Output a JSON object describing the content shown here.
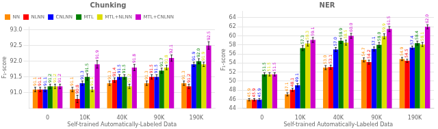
{
  "chart_data": [
    {
      "type": "bar",
      "title": "Chunking",
      "xlabel": "Self-trained Automatically-Labeled Data",
      "ylabel": "F₁-score",
      "categories": [
        "0",
        "10K",
        "40K",
        "90K",
        "190K"
      ],
      "series": [
        {
          "name": "NN",
          "color": "#FF8C00",
          "values": [
            91.1,
            91.1,
            91.3,
            91.3,
            91.3
          ],
          "errors": [
            0.07,
            0.07,
            0.07,
            0.07,
            0.07
          ],
          "value_labels": [
            "91.1",
            "91.1",
            "91.3",
            "91.3",
            "91.3"
          ]
        },
        {
          "name": "NLNN",
          "color": "#FF0000",
          "values": [
            91.1,
            90.8,
            91.4,
            91.5,
            91.2
          ],
          "errors": [
            0.07,
            0.12,
            0.07,
            0.07,
            0.07
          ],
          "value_labels": [
            "91.1",
            "90.8",
            "91.4",
            "91.5",
            "91.2"
          ]
        },
        {
          "name": "CNLNN",
          "color": "#0000FF",
          "values": [
            91.1,
            91.3,
            91.5,
            91.5,
            91.9
          ],
          "errors": [
            0.07,
            0.07,
            0.07,
            0.07,
            0.07
          ],
          "value_labels": [
            "91.1",
            "91.3",
            "91.5",
            "91.5",
            "91.9"
          ]
        },
        {
          "name": "MTL",
          "color": "#008000",
          "values": [
            91.2,
            91.5,
            91.5,
            91.7,
            92.0
          ],
          "errors": [
            0.07,
            0.1,
            0.07,
            0.08,
            0.08
          ],
          "value_labels": [
            "91.2",
            "91.5",
            "91.5",
            "91.7",
            "92.0"
          ]
        },
        {
          "name": "MTL+NLNN",
          "color": "#DDDD00",
          "values": [
            91.2,
            91.1,
            91.2,
            91.8,
            91.9
          ],
          "errors": [
            0.07,
            0.07,
            0.07,
            0.07,
            0.07
          ],
          "value_labels": [
            "91.2",
            "91.1",
            "91.2",
            "91.8",
            "91.9"
          ]
        },
        {
          "name": "MTL+CNLNN",
          "color": "#CC00CC",
          "values": [
            91.2,
            91.9,
            91.8,
            92.1,
            92.5
          ],
          "errors": [
            0.07,
            0.12,
            0.1,
            0.1,
            0.12
          ],
          "value_labels": [
            "91.2",
            "91.9",
            "91.8",
            "92.1",
            "92.5"
          ]
        }
      ],
      "ylim": [
        90.5,
        93.1
      ],
      "yticks": [
        {
          "value": 91.0,
          "label": "91.0"
        },
        91.5,
        {
          "value": 92.0,
          "label": "92.0"
        },
        92.5,
        {
          "value": 93.0,
          "label": "93.0"
        }
      ],
      "grid": true,
      "data_labels": true,
      "legend": "upper left"
    },
    {
      "type": "bar",
      "title": "NER",
      "xlabel": "Self-trained Automatically-Labeled Data",
      "ylabel": "F₁-score",
      "categories": [
        "0",
        "10K",
        "40K",
        "90K",
        "190K"
      ],
      "series": [
        {
          "name": "NN",
          "color": "#FF8C00",
          "values": [
            45.9,
            47.1,
            53.0,
            54.7,
            54.9
          ],
          "errors": [
            0.25,
            0.35,
            0.45,
            0.45,
            0.35
          ],
          "value_labels": [
            "45.9",
            "47.1",
            "53.0",
            "54.7",
            "54.9"
          ]
        },
        {
          "name": "NLNN",
          "color": "#FF0000",
          "values": [
            45.9,
            48.1,
            53.1,
            54.2,
            54.5
          ],
          "errors": [
            0.25,
            0.35,
            0.45,
            0.45,
            0.35
          ],
          "value_labels": [
            "45.9",
            "48.1",
            "53.1",
            "54.2",
            "54.5"
          ]
        },
        {
          "name": "CNLNN",
          "color": "#0000FF",
          "values": [
            45.9,
            49.1,
            57.0,
            57.1,
            57.4
          ],
          "errors": [
            0.25,
            0.35,
            0.45,
            0.45,
            0.35
          ],
          "value_labels": [
            "45.9",
            "49.1",
            "57.0",
            "57.1",
            "57.4"
          ]
        },
        {
          "name": "MTL",
          "color": "#008000",
          "values": [
            51.5,
            57.3,
            58.9,
            58.0,
            58.4
          ],
          "errors": [
            0.35,
            0.55,
            0.55,
            0.55,
            0.45
          ],
          "value_labels": [
            "51.5",
            "57.3",
            "58.9",
            "58.0",
            "58.4"
          ]
        },
        {
          "name": "MTL+NLNN",
          "color": "#DDDD00",
          "values": [
            51.5,
            58.3,
            58.5,
            59.9,
            58.1
          ],
          "errors": [
            0.35,
            0.55,
            0.55,
            0.55,
            0.45
          ],
          "value_labels": [
            "51.5",
            "58.3",
            "58.5",
            "59.9",
            "58.1"
          ]
        },
        {
          "name": "MTL+CNLNN",
          "color": "#CC00CC",
          "values": [
            51.5,
            59.1,
            60.0,
            61.5,
            62.0
          ],
          "errors": [
            0.35,
            0.55,
            0.55,
            0.55,
            0.45
          ],
          "value_labels": [
            "51.5",
            "59.1",
            "60.0",
            "61.5",
            "62.0"
          ]
        }
      ],
      "ylim": [
        44.0,
        65.5
      ],
      "yticks": [
        44,
        46,
        48,
        50,
        52,
        54,
        56,
        58,
        60,
        62,
        64
      ],
      "grid": true,
      "data_labels": true
    }
  ]
}
